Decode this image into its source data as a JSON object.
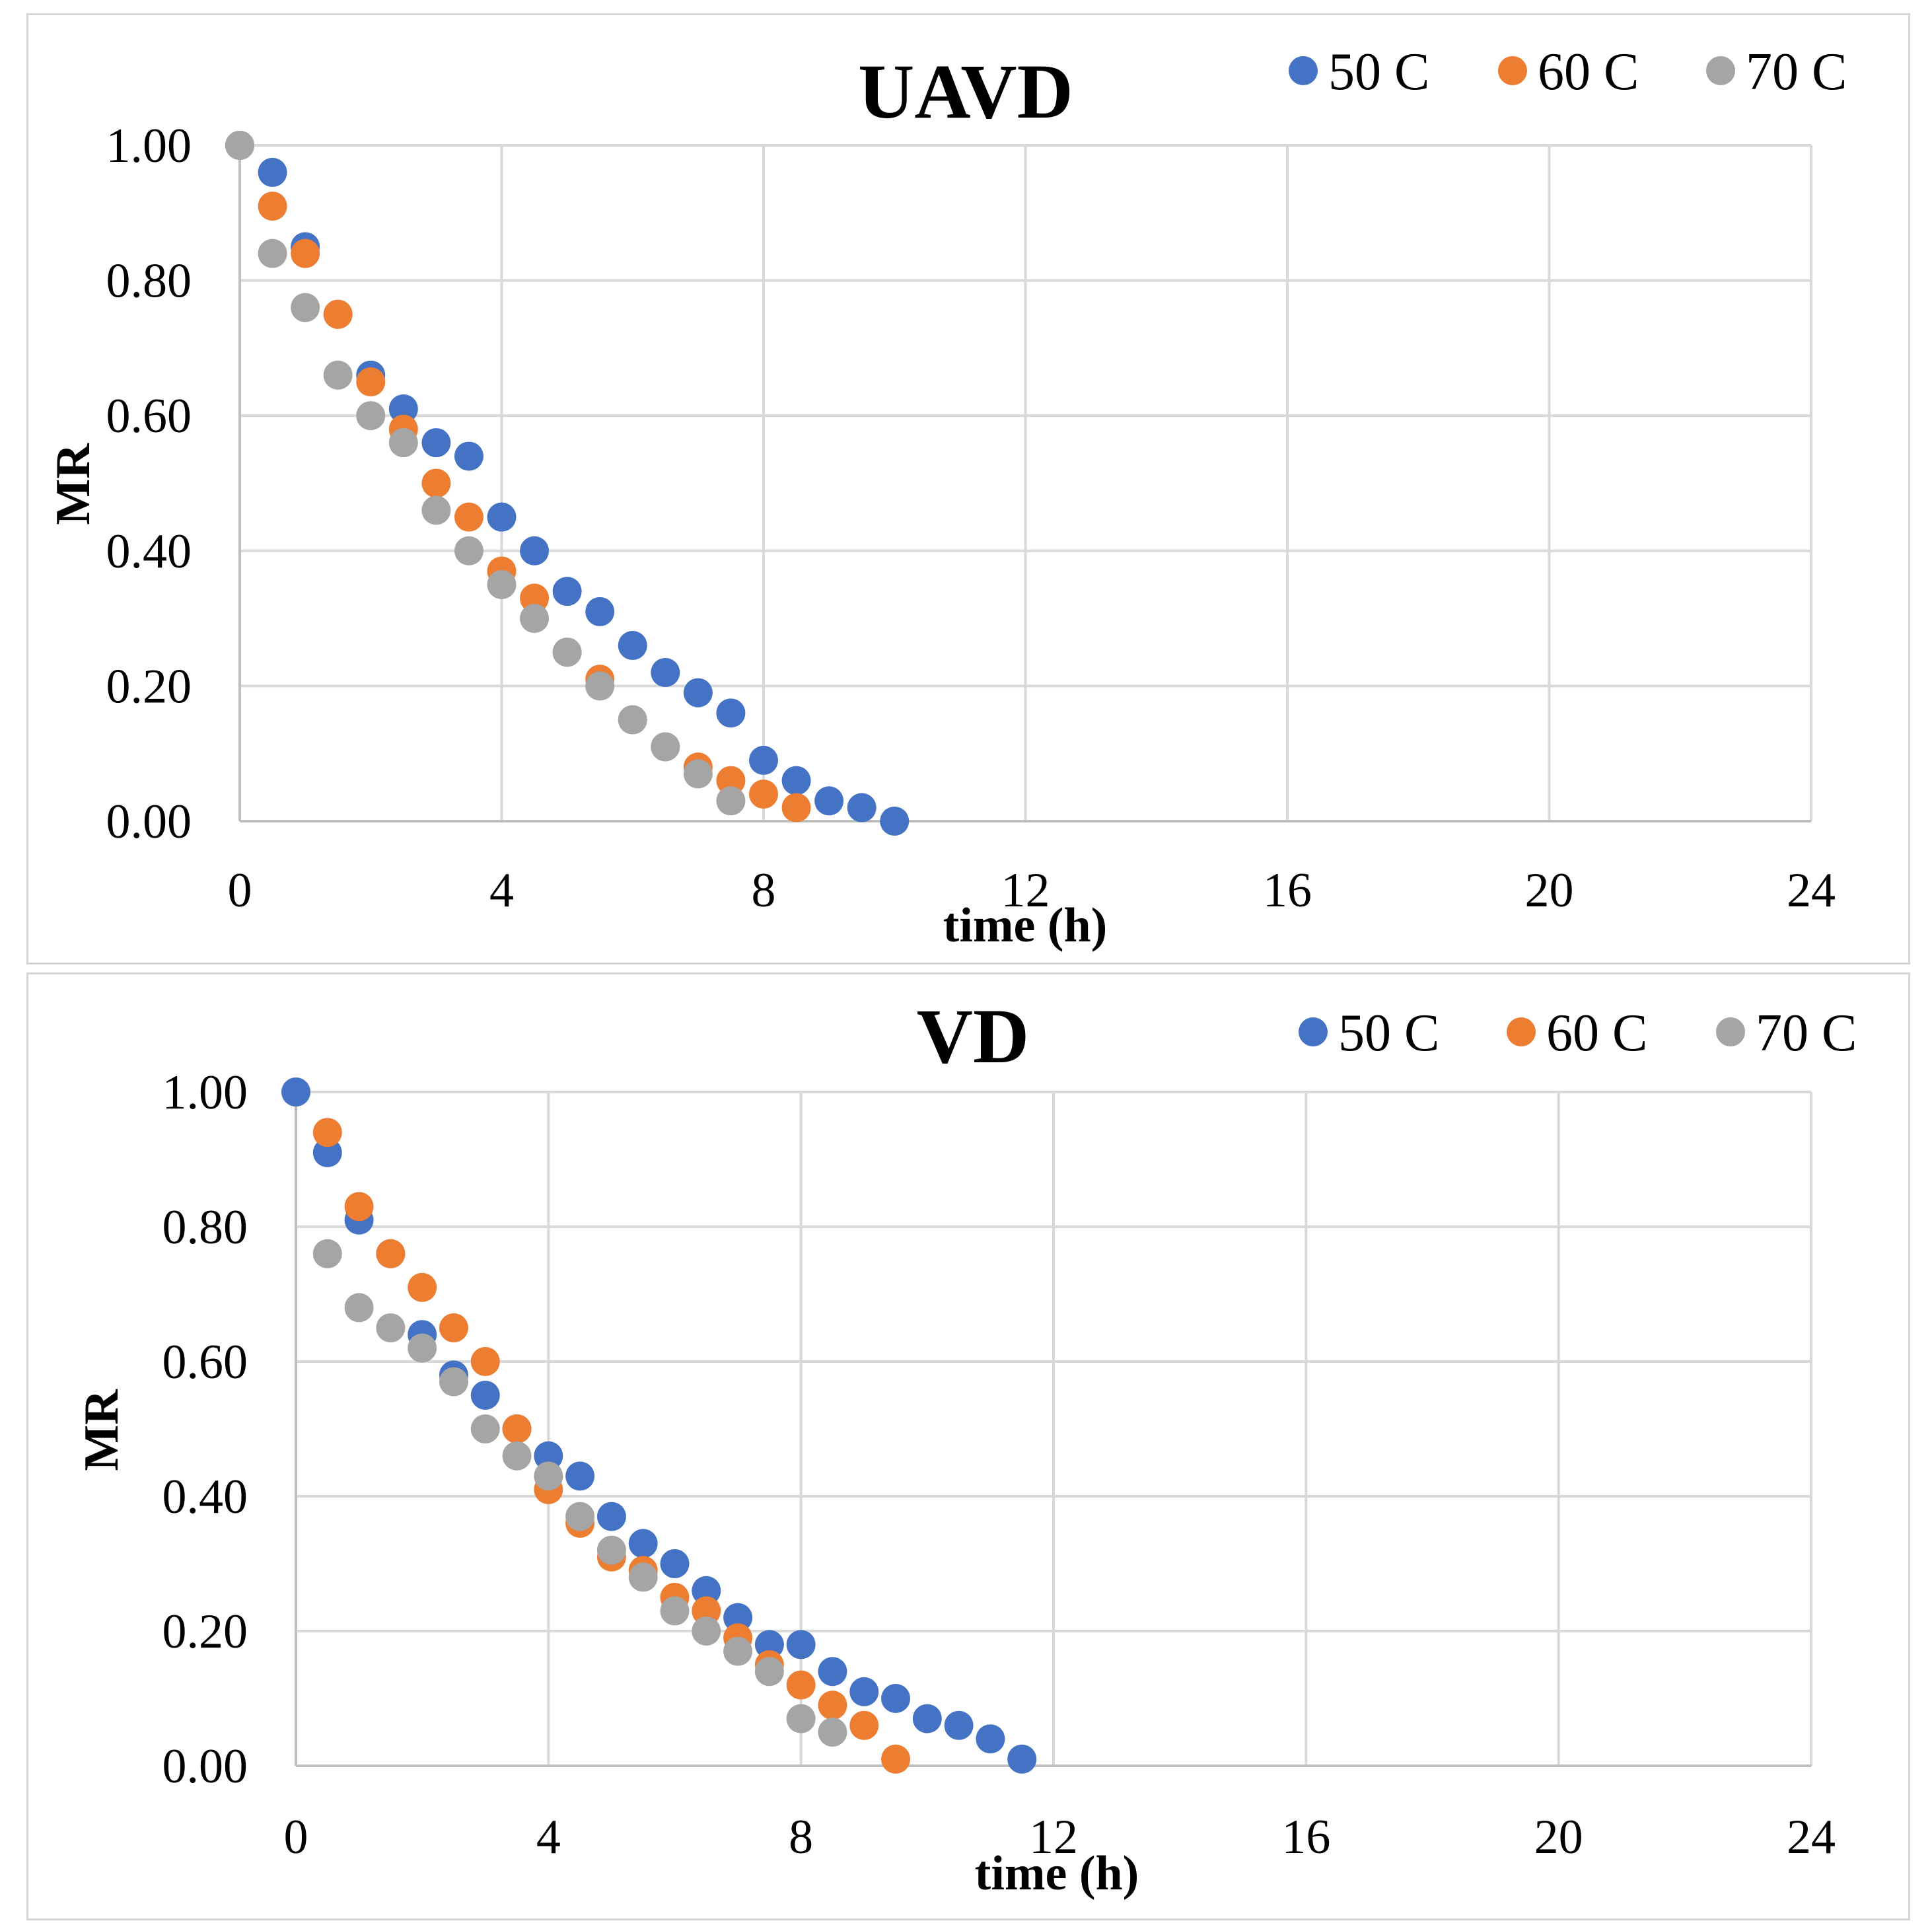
{
  "chart_data": [
    {
      "type": "scatter",
      "title": "UAVD",
      "xlabel": "time (h)",
      "ylabel": "MR",
      "xlim": [
        0,
        24
      ],
      "ylim": [
        0,
        1
      ],
      "x_ticks": [
        "0",
        "4",
        "8",
        "12",
        "16",
        "20",
        "24"
      ],
      "y_ticks": [
        "0.00",
        "0.20",
        "0.40",
        "0.60",
        "0.80",
        "1.00"
      ],
      "grid": true,
      "legend_position": "top-right",
      "series": [
        {
          "name": "50 C",
          "color": "#4472C4",
          "x": [
            0,
            0.5,
            1,
            1.5,
            2,
            2.5,
            3,
            3.5,
            4,
            4.5,
            5,
            5.5,
            6,
            6.5,
            7,
            7.5,
            8,
            8.5,
            9,
            9.5,
            10
          ],
          "y": [
            1.0,
            0.96,
            0.85,
            0.75,
            0.66,
            0.61,
            0.56,
            0.54,
            0.45,
            0.4,
            0.34,
            0.31,
            0.26,
            0.22,
            0.19,
            0.16,
            0.09,
            0.06,
            0.03,
            0.02,
            0.0
          ]
        },
        {
          "name": "60 C",
          "color": "#ED7D31",
          "x": [
            0,
            0.5,
            1,
            1.5,
            2,
            2.5,
            3,
            3.5,
            4,
            4.5,
            5,
            5.5,
            6,
            6.5,
            7,
            7.5,
            8,
            8.5
          ],
          "y": [
            1.0,
            0.91,
            0.84,
            0.75,
            0.65,
            0.58,
            0.5,
            0.45,
            0.37,
            0.33,
            0.25,
            0.21,
            0.15,
            0.11,
            0.08,
            0.06,
            0.04,
            0.02
          ]
        },
        {
          "name": "70 C",
          "color": "#A5A5A5",
          "x": [
            0,
            0.5,
            1,
            1.5,
            2,
            2.5,
            3,
            3.5,
            4,
            4.5,
            5,
            5.5,
            6,
            6.5,
            7,
            7.5
          ],
          "y": [
            1.0,
            0.84,
            0.76,
            0.66,
            0.6,
            0.56,
            0.46,
            0.4,
            0.35,
            0.3,
            0.25,
            0.2,
            0.15,
            0.11,
            0.07,
            0.03
          ]
        }
      ]
    },
    {
      "type": "scatter",
      "title": "VD",
      "xlabel": "time (h)",
      "ylabel": "MR",
      "xlim": [
        0,
        24
      ],
      "ylim": [
        0,
        1
      ],
      "x_ticks": [
        "0",
        "4",
        "8",
        "12",
        "16",
        "20",
        "24"
      ],
      "y_ticks": [
        "0.00",
        "0.20",
        "0.40",
        "0.60",
        "0.80",
        "1.00"
      ],
      "grid": true,
      "legend_position": "top-right",
      "series": [
        {
          "name": "50 C",
          "color": "#4472C4",
          "x": [
            0,
            0.5,
            1,
            1.5,
            2,
            2.5,
            3,
            3.5,
            4,
            4.5,
            5,
            5.5,
            6,
            6.5,
            7,
            7.5,
            8,
            8.5,
            9,
            9.5,
            10,
            10.5,
            11,
            11.5
          ],
          "y": [
            1.0,
            0.91,
            0.81,
            0.76,
            0.64,
            0.58,
            0.55,
            0.5,
            0.46,
            0.43,
            0.37,
            0.33,
            0.3,
            0.26,
            0.22,
            0.18,
            0.18,
            0.14,
            0.11,
            0.1,
            0.07,
            0.06,
            0.04,
            0.01
          ]
        },
        {
          "name": "60 C",
          "color": "#ED7D31",
          "x": [
            0.5,
            1,
            1.5,
            2,
            2.5,
            3,
            3.5,
            4,
            4.5,
            5,
            5.5,
            6,
            6.5,
            7,
            7.5,
            8,
            8.5,
            9,
            9.5
          ],
          "y": [
            0.94,
            0.83,
            0.76,
            0.71,
            0.65,
            0.6,
            0.5,
            0.41,
            0.36,
            0.31,
            0.29,
            0.25,
            0.23,
            0.19,
            0.15,
            0.12,
            0.09,
            0.06,
            0.01
          ]
        },
        {
          "name": "70 C",
          "color": "#A5A5A5",
          "x": [
            0.5,
            1,
            1.5,
            2,
            2.5,
            3,
            3.5,
            4,
            4.5,
            5,
            5.5,
            6,
            6.5,
            7,
            7.5,
            8,
            8.5
          ],
          "y": [
            0.76,
            0.68,
            0.65,
            0.62,
            0.57,
            0.5,
            0.46,
            0.43,
            0.37,
            0.32,
            0.28,
            0.23,
            0.2,
            0.17,
            0.14,
            0.07,
            0.05
          ]
        }
      ]
    }
  ]
}
